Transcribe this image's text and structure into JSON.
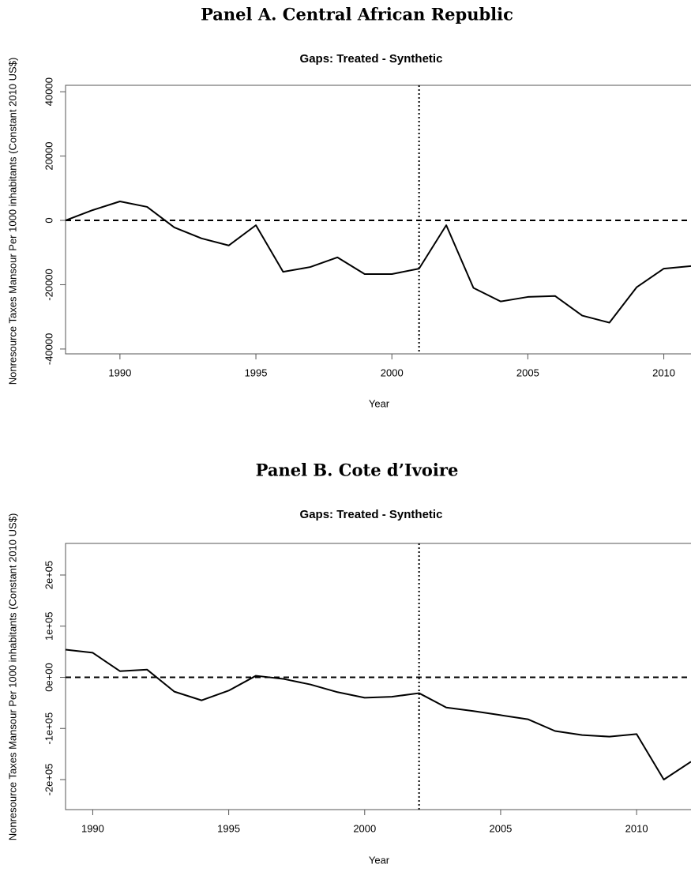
{
  "chart_data": [
    {
      "type": "line",
      "title": "Panel A. Central African Republic",
      "subtitle": "Gaps: Treated - Synthetic",
      "xlabel": "Year",
      "ylabel": "Nonresource Taxes Mansour Per 1000 inhabitants (Constant 2010 US$)",
      "x": [
        1988,
        1989,
        1990,
        1991,
        1992,
        1993,
        1994,
        1995,
        1996,
        1997,
        1998,
        1999,
        2000,
        2001,
        2002,
        2003,
        2004,
        2005,
        2006,
        2007,
        2008,
        2009,
        2010,
        2011
      ],
      "series": [
        {
          "color": "#000000",
          "values": [
            0,
            3200,
            5900,
            4200,
            -2200,
            -5600,
            -7800,
            -1500,
            -16000,
            -14500,
            -11500,
            -16700,
            -16700,
            -15000,
            -1500,
            -21000,
            -25200,
            -23800,
            -23500,
            -29600,
            -31800,
            -20800,
            -15000,
            -14200
          ]
        }
      ],
      "xlim": [
        1988,
        2011
      ],
      "ylim": [
        -41500,
        42000
      ],
      "xticks": [
        1990,
        1995,
        2000,
        2005,
        2010
      ],
      "yticks": [
        -40000,
        -20000,
        0,
        20000,
        40000
      ],
      "hline": 0,
      "vline": 2001
    },
    {
      "type": "line",
      "title": "Panel B. Cote d’Ivoire",
      "subtitle": "Gaps: Treated - Synthetic",
      "xlabel": "Year",
      "ylabel": "Nonresource Taxes Mansour Per 1000 inhabitants (Constant 2010 US$)",
      "x": [
        1989,
        1990,
        1991,
        1992,
        1993,
        1994,
        1995,
        1996,
        1997,
        1998,
        1999,
        2000,
        2001,
        2002,
        2003,
        2004,
        2005,
        2006,
        2007,
        2008,
        2009,
        2010,
        2011,
        2012
      ],
      "series": [
        {
          "color": "#000000",
          "values": [
            54000,
            48000,
            12000,
            15000,
            -28000,
            -45000,
            -26000,
            3000,
            -3000,
            -14000,
            -29000,
            -40000,
            -38000,
            -31000,
            -59000,
            -66000,
            -74000,
            -82000,
            -105000,
            -113000,
            -116000,
            -111000,
            -200000,
            -165000
          ]
        }
      ],
      "xlim": [
        1989,
        2012
      ],
      "ylim": [
        -258700,
        261800
      ],
      "xticks": [
        1990,
        1995,
        2000,
        2005,
        2010
      ],
      "yticks": [
        {
          "value": -200000,
          "label": "-2e+05"
        },
        {
          "value": -100000,
          "label": "-1e+05"
        },
        {
          "value": 0,
          "label": "0e+00"
        },
        {
          "value": 100000,
          "label": "1e+05"
        },
        {
          "value": 200000,
          "label": "2e+05"
        }
      ],
      "hline": 0,
      "vline": 2002
    }
  ]
}
